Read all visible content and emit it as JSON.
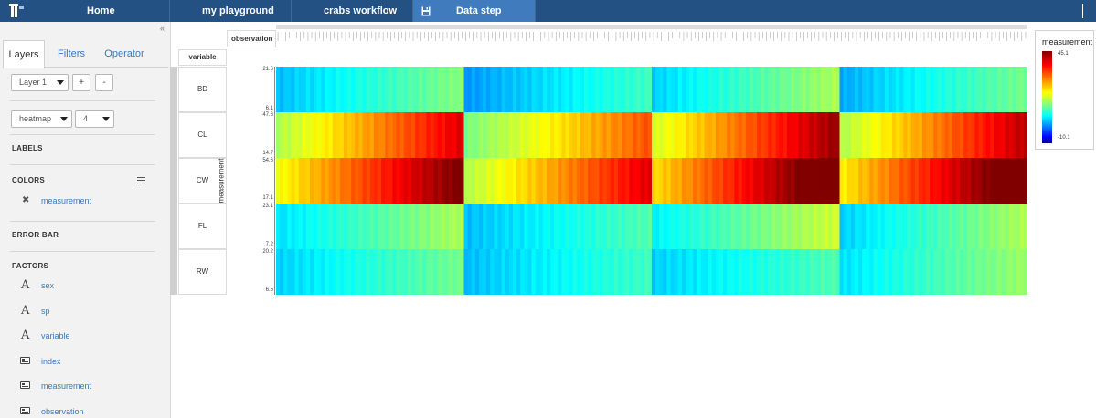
{
  "nav": {
    "tabs": [
      {
        "label": "Home"
      },
      {
        "label": "my playground"
      },
      {
        "label": "crabs workflow"
      },
      {
        "label": "Data step"
      }
    ],
    "active_tab": "Data step"
  },
  "sidebar": {
    "collapse_symbol": "«",
    "tabs": [
      "Layers",
      "Filters",
      "Operator"
    ],
    "active_tab": "Layers",
    "layer_select": "Layer 1",
    "add_label": "+",
    "remove_label": "-",
    "chart_type_select": "heatmap",
    "count_select": "4",
    "sections": {
      "labels": "LABELS",
      "colors": "COLORS",
      "error_bar": "ERROR BAR",
      "factors": "FACTORS"
    },
    "color_factor": "measurement",
    "factors": [
      {
        "name": "sex",
        "kind": "text"
      },
      {
        "name": "sp",
        "kind": "text"
      },
      {
        "name": "variable",
        "kind": "text"
      },
      {
        "name": "index",
        "kind": "numeric"
      },
      {
        "name": "measurement",
        "kind": "numeric"
      },
      {
        "name": "observation",
        "kind": "numeric"
      }
    ]
  },
  "plot": {
    "column_header": "observation",
    "row_header": "variable",
    "y_axis_label": "measurement",
    "rows": [
      {
        "name": "BD",
        "y_max": "21.6",
        "y_min": "6.1"
      },
      {
        "name": "CL",
        "y_max": "47.6",
        "y_min": "14.7"
      },
      {
        "name": "CW",
        "y_max": "54.6",
        "y_min": "17.1"
      },
      {
        "name": "FL",
        "y_max": "23.1",
        "y_min": "7.2"
      },
      {
        "name": "RW",
        "y_max": "20.2",
        "y_min": "6.5"
      }
    ],
    "legend": {
      "title": "measurement",
      "max": "45.1",
      "min": "-10.1"
    }
  },
  "chart_data": {
    "type": "heatmap",
    "title": "",
    "xlabel": "observation",
    "ylabel": "variable",
    "color_label": "measurement",
    "color_range": [
      -10.1,
      45.1
    ],
    "rows": [
      "BD",
      "CL",
      "CW",
      "FL",
      "RW"
    ],
    "groups": 4,
    "observations_per_group": 50,
    "group_start_end": [
      [
        [
          7,
          18
        ],
        [
          20,
          40
        ],
        [
          24,
          46
        ],
        [
          9,
          20
        ],
        [
          8,
          17
        ]
      ],
      [
        [
          5,
          14
        ],
        [
          17,
          34
        ],
        [
          20,
          40
        ],
        [
          7,
          15
        ],
        [
          7,
          14
        ]
      ],
      [
        [
          8,
          20
        ],
        [
          22,
          44
        ],
        [
          26,
          50
        ],
        [
          10,
          22
        ],
        [
          8,
          15
        ]
      ],
      [
        [
          6,
          17
        ],
        [
          20,
          42
        ],
        [
          25,
          50
        ],
        [
          8,
          20
        ],
        [
          9,
          19
        ]
      ]
    ],
    "legend": "right"
  },
  "colors": {
    "topbar": "#235183",
    "active_tab": "#3f7bbd",
    "link": "#3b78bd",
    "sidebar_bg": "#f2f2f2"
  }
}
